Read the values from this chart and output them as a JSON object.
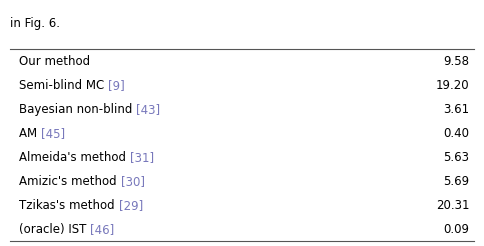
{
  "header_text": "in Fig. 6.",
  "rows": [
    {
      "label": "Our method",
      "ref": "",
      "value": "9.58"
    },
    {
      "label": "Semi-blind MC ",
      "ref": "[9]",
      "value": "19.20"
    },
    {
      "label": "Bayesian non-blind ",
      "ref": "[43]",
      "value": "3.61"
    },
    {
      "label": "AM ",
      "ref": "[45]",
      "value": "0.40"
    },
    {
      "label": "Almeida's method ",
      "ref": "[31]",
      "value": "5.63"
    },
    {
      "label": "Amizic's method ",
      "ref": "[30]",
      "value": "5.69"
    },
    {
      "label": "Tzikas's method ",
      "ref": "[29]",
      "value": "20.31"
    },
    {
      "label": "(oracle) IST ",
      "ref": "[46]",
      "value": "0.09"
    }
  ],
  "text_color": "#000000",
  "ref_color": "#7878bb",
  "bg_color": "#ffffff",
  "font_size": 8.5,
  "header_font_size": 8.5,
  "line_color": "#555555"
}
